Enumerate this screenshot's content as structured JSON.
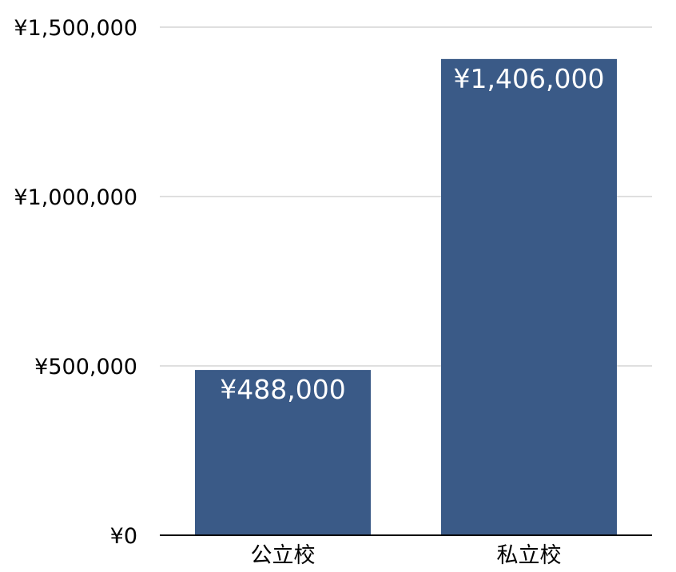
{
  "chart_data": {
    "type": "bar",
    "categories": [
      "公立校",
      "私立校"
    ],
    "values": [
      488000,
      1406000
    ],
    "value_labels": [
      "¥488,000",
      "¥1,406,000"
    ],
    "ylim": [
      0,
      1500000
    ],
    "yticks": [
      0,
      500000,
      1000000,
      1500000
    ],
    "ytick_labels": [
      "¥0",
      "¥500,000",
      "¥1,000,000",
      "¥1,500,000"
    ],
    "title": "",
    "xlabel": "",
    "ylabel": "",
    "grid": true,
    "legend": "none",
    "bar_color": "#3A5A87",
    "grid_color": "#BFBFBF",
    "axis_color": "#000000"
  }
}
